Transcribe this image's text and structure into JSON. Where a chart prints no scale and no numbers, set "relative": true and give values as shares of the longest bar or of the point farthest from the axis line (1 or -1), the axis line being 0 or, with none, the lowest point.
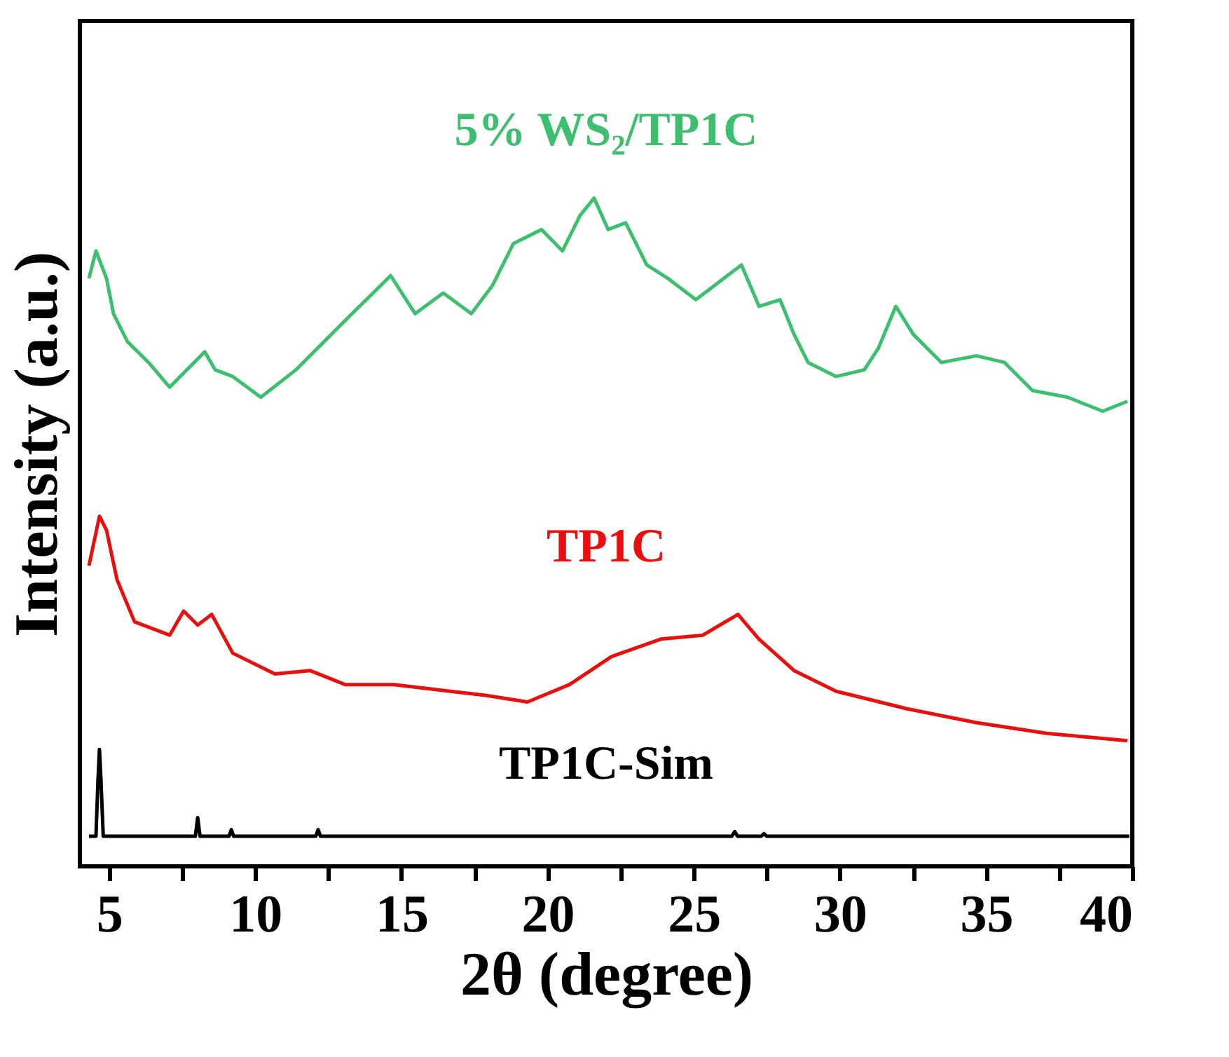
{
  "chart_data": {
    "type": "line",
    "relative": true,
    "xlabel": "2θ (degree)",
    "ylabel": "Intensity (a.u.)",
    "xlim": [
      4,
      40
    ],
    "xticks": [
      5,
      {
        "value": 7.5,
        "label": null
      },
      10,
      {
        "value": 12.5,
        "label": null
      },
      15,
      {
        "value": 17.5,
        "label": null
      },
      20,
      {
        "value": 22.5,
        "label": null
      },
      25,
      {
        "value": 27.5,
        "label": null
      },
      30,
      {
        "value": 32.5,
        "label": null
      },
      35,
      {
        "value": 37.5,
        "label": null
      },
      40
    ],
    "grid": false,
    "marker": "none",
    "line_style": "solid",
    "series": [
      {
        "name": "5% WS₂/TP1C",
        "color": "#3dbf6f",
        "x": [
          4.31,
          4.55,
          4.91,
          5.15,
          5.63,
          6.35,
          7.07,
          8.27,
          8.63,
          9.23,
          10.19,
          11.39,
          12.35,
          13.31,
          14.03,
          14.63,
          15.47,
          16.43,
          17.39,
          18.11,
          18.83,
          19.79,
          20.51,
          21.11,
          21.59,
          22.07,
          22.67,
          23.39,
          24.11,
          25.07,
          26.03,
          26.63,
          27.23,
          27.95,
          28.43,
          28.91,
          29.87,
          30.83,
          31.31,
          31.91,
          32.51,
          33.47,
          34.67,
          35.63,
          36.59,
          37.79,
          38.99,
          39.83
        ],
        "values": [
          0.88,
          0.921,
          0.88,
          0.827,
          0.785,
          0.754,
          0.717,
          0.77,
          0.743,
          0.733,
          0.702,
          0.743,
          0.785,
          0.827,
          0.858,
          0.884,
          0.827,
          0.858,
          0.827,
          0.869,
          0.932,
          0.953,
          0.921,
          0.974,
          1,
          0.953,
          0.963,
          0.9,
          0.88,
          0.848,
          0.88,
          0.9,
          0.838,
          0.848,
          0.796,
          0.754,
          0.733,
          0.743,
          0.775,
          0.838,
          0.796,
          0.754,
          0.764,
          0.754,
          0.712,
          0.702,
          0.681,
          0.696
        ]
      },
      {
        "name": "TP1C",
        "color": "#e8100f",
        "x": [
          4.31,
          4.67,
          4.91,
          5.27,
          5.87,
          7.07,
          7.55,
          8.03,
          8.51,
          9.23,
          10.67,
          11.87,
          13.07,
          14.75,
          16.67,
          17.87,
          19.31,
          20.75,
          22.19,
          23.87,
          25.31,
          26.51,
          27.23,
          28.43,
          29.87,
          32.27,
          34.67,
          37.07,
          39.83
        ],
        "values": [
          0.45,
          0.524,
          0.503,
          0.429,
          0.366,
          0.346,
          0.382,
          0.361,
          0.377,
          0.319,
          0.288,
          0.293,
          0.272,
          0.272,
          0.262,
          0.256,
          0.246,
          0.272,
          0.314,
          0.34,
          0.346,
          0.377,
          0.34,
          0.293,
          0.262,
          0.236,
          0.215,
          0.199,
          0.188
        ]
      },
      {
        "name": "TP1C-Sim",
        "color": "#000000",
        "x": [
          4.31,
          4.55,
          4.62,
          4.67,
          4.72,
          4.8,
          7.95,
          8.03,
          8.11,
          9.1,
          9.18,
          9.26,
          12.07,
          12.15,
          12.23,
          26.3,
          26.4,
          26.5,
          27.3,
          27.4,
          27.5,
          39.9
        ],
        "values": [
          0.045,
          0.045,
          0.13,
          0.175,
          0.13,
          0.045,
          0.045,
          0.073,
          0.045,
          0.045,
          0.055,
          0.045,
          0.045,
          0.055,
          0.045,
          0.045,
          0.052,
          0.045,
          0.045,
          0.049,
          0.045,
          0.045
        ]
      }
    ]
  }
}
